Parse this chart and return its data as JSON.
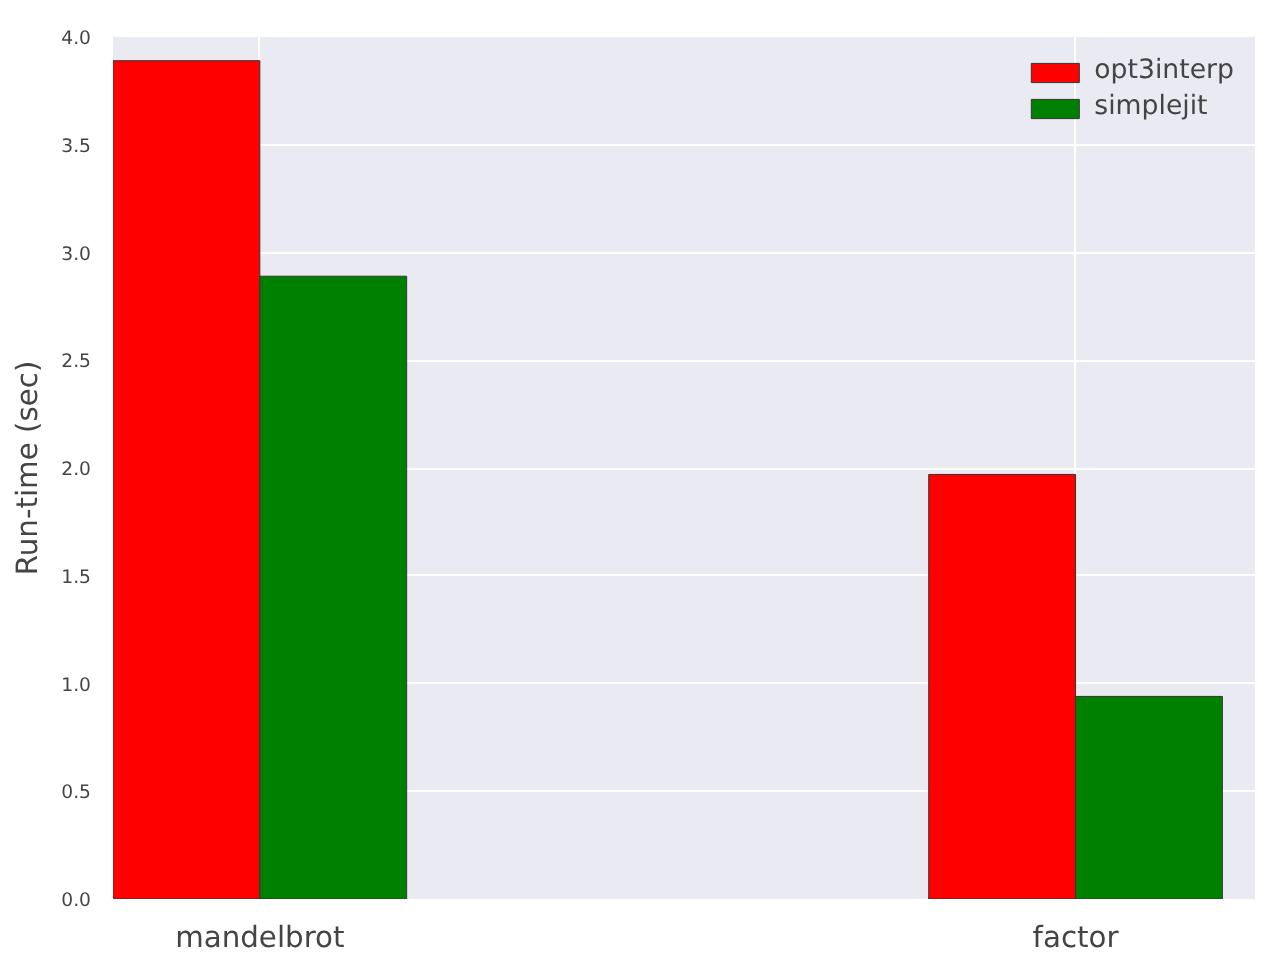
{
  "chart_data": {
    "type": "bar",
    "ylabel": "Run-time (sec)",
    "categories": [
      "mandelbrot",
      "factor"
    ],
    "series": [
      {
        "name": "opt3interp",
        "color": "#ff0000",
        "values": [
          3.89,
          1.97
        ]
      },
      {
        "name": "simplejit",
        "color": "#008000",
        "values": [
          2.89,
          0.94
        ]
      }
    ],
    "ylim": [
      0,
      4
    ],
    "yticks": [
      {
        "value": 0,
        "label": "0.0"
      },
      {
        "value": 0.5,
        "label": "0.5"
      },
      {
        "value": 1,
        "label": "1.0"
      },
      {
        "value": 1.5,
        "label": "1.5"
      },
      {
        "value": 2,
        "label": "2.0"
      },
      {
        "value": 2.5,
        "label": "2.5"
      },
      {
        "value": 3,
        "label": "3.0"
      },
      {
        "value": 3.5,
        "label": "3.5"
      },
      {
        "value": 4,
        "label": "4.0"
      }
    ],
    "grid": true,
    "legend": "top right"
  }
}
